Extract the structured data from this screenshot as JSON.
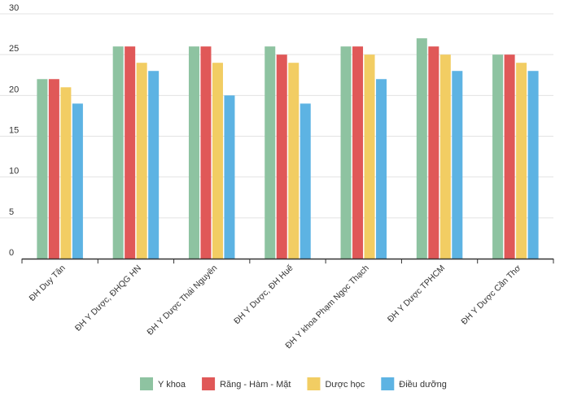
{
  "chart_data": {
    "type": "bar",
    "title": "",
    "xlabel": "",
    "ylabel": "",
    "ylim": [
      0,
      30
    ],
    "yticks": [
      0,
      5,
      10,
      15,
      20,
      25,
      30
    ],
    "grid": true,
    "legend_position": "bottom",
    "categories": [
      "ĐH Duy Tân",
      "ĐH Y Dược, ĐHQG HN",
      "ĐH Y Dược Thái Nguyên",
      "ĐH Y Dược, ĐH Huế",
      "ĐH Y khoa Phạm Ngọc Thạch",
      "ĐH Y Dược TPHCM",
      "ĐH Y Dược Cần Thơ"
    ],
    "series": [
      {
        "name": "Y khoa",
        "color": "#8ec3a1",
        "values": [
          22,
          26,
          26,
          26,
          26,
          27,
          25
        ]
      },
      {
        "name": "Răng - Hàm - Mặt",
        "color": "#e05858",
        "values": [
          22,
          26,
          26,
          25,
          26,
          26,
          25
        ]
      },
      {
        "name": "Dược học",
        "color": "#f2cd63",
        "values": [
          21,
          24,
          24,
          24,
          25,
          25,
          24
        ]
      },
      {
        "name": "Điều dưỡng",
        "color": "#5db3e3",
        "values": [
          19,
          23,
          20,
          19,
          22,
          23,
          23
        ]
      }
    ]
  }
}
